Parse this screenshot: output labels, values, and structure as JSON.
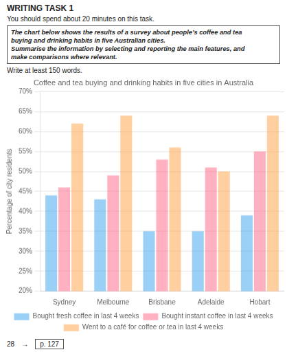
{
  "chart_data": {
    "type": "bar",
    "title": "Coffee and tea buying and drinking habits in five cities in Australia",
    "y_label": "Percentage of city residents",
    "categories": [
      "Sydney",
      "Melbourne",
      "Brisbane",
      "Adelaide",
      "Hobart"
    ],
    "series": [
      {
        "name": "Bought fresh coffee in last 4 weeks",
        "values": [
          44,
          43,
          35,
          35,
          39
        ]
      },
      {
        "name": "Bought instant coffee in last 4 weeks",
        "values": [
          46,
          49,
          53,
          51,
          55
        ]
      },
      {
        "name": "Went to a café for coffee or tea in last 4 weeks",
        "values": [
          62,
          64,
          56,
          50,
          64
        ]
      }
    ],
    "ylim": [
      20,
      70
    ],
    "yticks": [
      {
        "value": 20,
        "label": "20%"
      },
      {
        "value": 25,
        "label": "25%"
      },
      {
        "value": 30,
        "label": "30%"
      },
      {
        "value": 35,
        "label": "35%"
      },
      {
        "value": 40,
        "label": "40%"
      },
      {
        "value": 45,
        "label": "45%"
      },
      {
        "value": 50,
        "label": "50%"
      },
      {
        "value": 55,
        "label": "55%"
      },
      {
        "value": 60,
        "label": "60%"
      },
      {
        "value": 65,
        "label": "65%"
      },
      {
        "value": 70,
        "label": "70%"
      }
    ],
    "grid": true,
    "legend": "bottom",
    "annotations": [
      "WRITING TASK 1",
      "You should spend about 20 minutes on this task.",
      "The chart below shows the results of a survey about people’s coffee and tea",
      "buying and drinking habits in five Australian cities.",
      "Summarise the information by selecting and reporting the main features, and",
      "make comparisons where relevant.",
      "Write at least 150 words.",
      "28",
      "→",
      "p. 127"
    ]
  }
}
